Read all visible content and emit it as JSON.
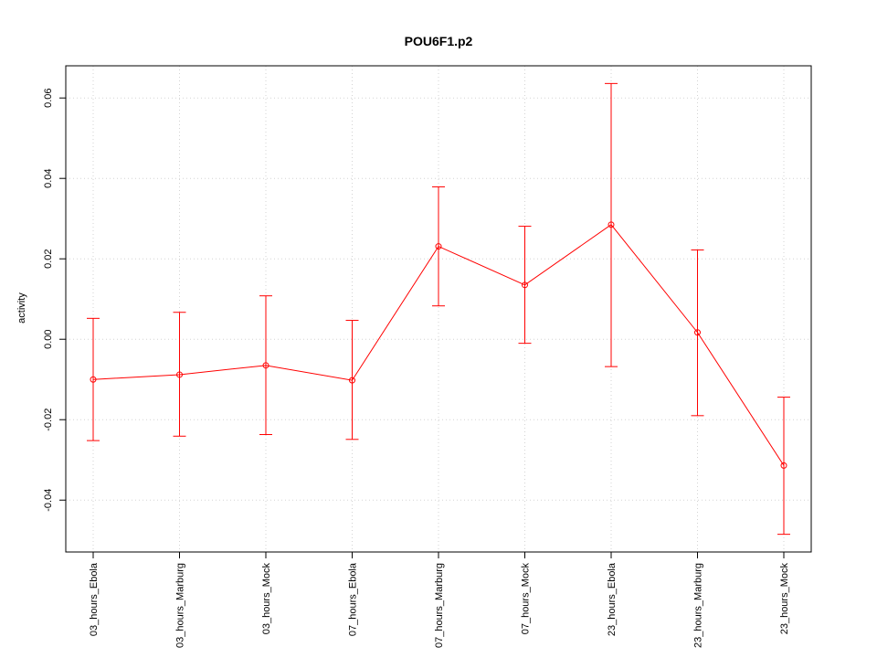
{
  "chart_data": {
    "type": "line",
    "title": "POU6F1.p2",
    "xlabel": "",
    "ylabel": "activity",
    "categories": [
      "03_hours_Ebola",
      "03_hours_Marburg",
      "03_hours_Mock",
      "07_hours_Ebola",
      "07_hours_Marburg",
      "07_hours_Mock",
      "23_hours_Ebola",
      "23_hours_Marburg",
      "23_hours_Mock"
    ],
    "series": [
      {
        "values": [
          -0.01,
          -0.0088,
          -0.0065,
          -0.0102,
          0.0231,
          0.0135,
          0.0285,
          0.0017,
          -0.0314
        ],
        "error_low": [
          -0.0252,
          -0.0241,
          -0.0237,
          -0.0249,
          0.0083,
          -0.001,
          -0.0068,
          -0.019,
          -0.0485
        ],
        "error_high": [
          0.0052,
          0.0067,
          0.0108,
          0.0047,
          0.0379,
          0.0281,
          0.0636,
          0.0222,
          -0.0144
        ]
      }
    ],
    "yticks": [
      -0.04,
      -0.02,
      0.0,
      0.02,
      0.04,
      0.06
    ],
    "ytick_labels": [
      "-0.04",
      "-0.02",
      "0.00",
      "0.02",
      "0.04",
      "0.06"
    ],
    "ylim": [
      -0.0529,
      0.068
    ],
    "grid": true,
    "colors": {
      "series": "#ff0000",
      "grid": "#d3d3d3",
      "axis": "#000000"
    }
  }
}
